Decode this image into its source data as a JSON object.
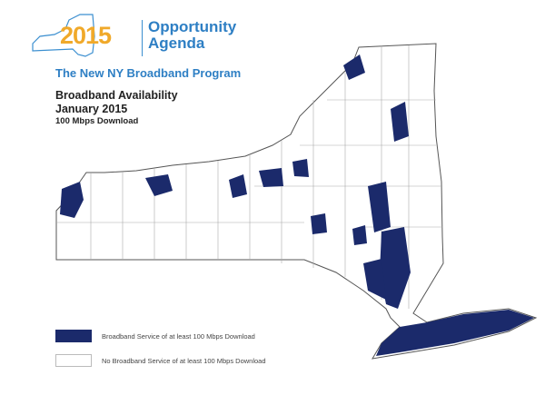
{
  "header": {
    "year": "2015",
    "agenda": [
      "Opportunity",
      "Agenda"
    ],
    "program": "The New NY Broadband Program",
    "title_line1": "Broadband Availability",
    "title_line2": "January 2015",
    "subtitle": "100 Mbps Download"
  },
  "legend": [
    {
      "label": "Broadband Service of at least 100 Mbps Download",
      "color": "#1b2a6b"
    },
    {
      "label": "No Broadband Service of at least 100 Mbps Download",
      "color": "#ffffff"
    }
  ],
  "colors": {
    "coverage": "#1b2a6b",
    "brand_blue": "#2e7fc4",
    "brand_gold": "#f0a92a",
    "border": "#9a9a9a"
  }
}
